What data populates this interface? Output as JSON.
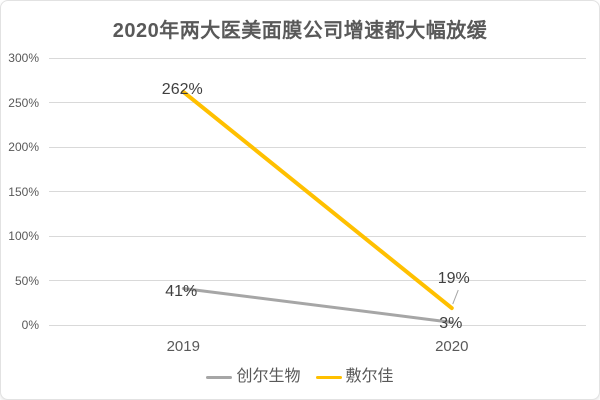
{
  "chart_data": {
    "type": "line",
    "title": "2020年两大医美面膜公司增速都大幅放缓",
    "categories": [
      "2019",
      "2020"
    ],
    "series": [
      {
        "name": "创尔生物",
        "color": "#a6a6a6",
        "stroke_width": 3,
        "values": [
          41,
          3
        ],
        "data_labels": [
          "41%",
          "3%"
        ]
      },
      {
        "name": "敷尔佳",
        "color": "#ffc000",
        "stroke_width": 4,
        "values": [
          262,
          19
        ],
        "data_labels": [
          "262%",
          "19%"
        ]
      }
    ],
    "y_axis": {
      "min": 0,
      "max": 300,
      "step": 50,
      "tick_labels": [
        "0%",
        "50%",
        "100%",
        "150%",
        "200%",
        "250%",
        "300%"
      ]
    },
    "grid": true,
    "legend_position": "bottom",
    "colors": {
      "gridline": "#d9d9d9",
      "axis_text": "#595959",
      "title_text": "#595959",
      "data_label_text": "#404040",
      "leader_line": "#a6a6a6"
    }
  }
}
